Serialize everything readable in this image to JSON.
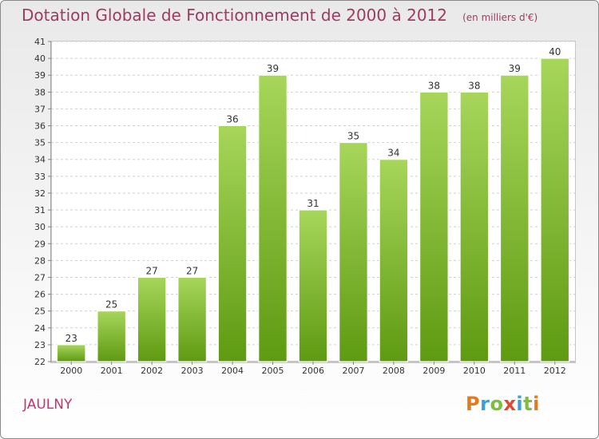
{
  "title": "Dotation Globale de Fonctionnement de 2000 à 2012",
  "unit_note": "(en milliers d'€)",
  "commune": "JAULNY",
  "logo_text": "Proxiti",
  "colors": {
    "bar_top": "#a7d65a",
    "bar_bottom": "#5e9a12",
    "title": "#9e3b62",
    "commune": "#c2346c"
  },
  "chart_data": {
    "type": "bar",
    "title": "Dotation Globale de Fonctionnement de 2000 à 2012",
    "xlabel": "",
    "ylabel": "",
    "categories": [
      "2000",
      "2001",
      "2002",
      "2003",
      "2004",
      "2005",
      "2006",
      "2007",
      "2008",
      "2009",
      "2010",
      "2011",
      "2012"
    ],
    "values": [
      23,
      25,
      27,
      27,
      36,
      39,
      31,
      35,
      34,
      38,
      38,
      39,
      40
    ],
    "ylim": [
      22,
      41
    ],
    "yticks": [
      22,
      23,
      24,
      25,
      26,
      27,
      28,
      29,
      30,
      31,
      32,
      33,
      34,
      35,
      36,
      37,
      38,
      39,
      40,
      41
    ],
    "grid": true,
    "legend": "none"
  }
}
